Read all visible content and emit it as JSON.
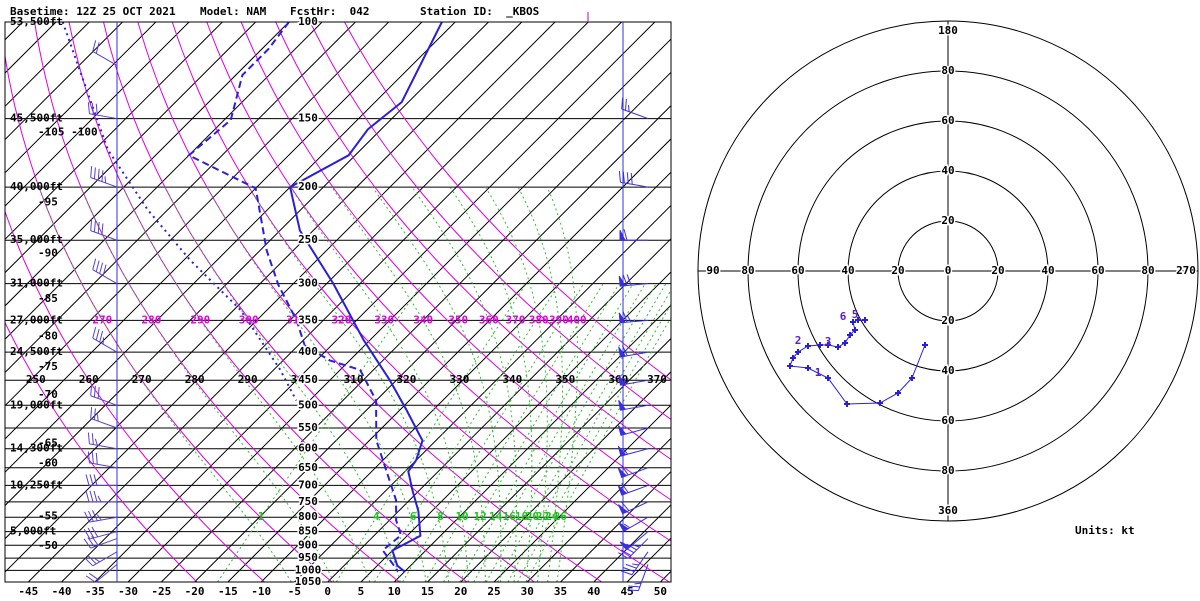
{
  "header": {
    "basetime": "Basetime: 12Z 25 OCT 2021",
    "model": "Model: NAM",
    "forecast_hour": "FcstHr:  042",
    "station": "Station ID:  _KBOS"
  },
  "chart_data": [
    {
      "type": "skewt",
      "log_y": true,
      "xlim": [
        -48.5,
        51.6
      ],
      "xticks": [
        -45,
        -40,
        -35,
        -30,
        -25,
        -20,
        -15,
        -10,
        -5,
        0,
        5,
        10,
        15,
        20,
        25,
        30,
        35,
        40,
        45,
        50
      ],
      "ylim": [
        1050,
        100
      ],
      "yticks": [
        100,
        150,
        200,
        250,
        300,
        350,
        400,
        450,
        500,
        550,
        600,
        650,
        700,
        750,
        800,
        850,
        900,
        950,
        1000,
        1050
      ],
      "height_labels": [
        {
          "value": 100,
          "label": "53,500ft"
        },
        {
          "value": 150,
          "label": "45,500ft"
        },
        {
          "value": 200,
          "label": "40,000ft"
        },
        {
          "value": 250,
          "label": "35,000ft"
        },
        {
          "value": 300,
          "label": "31,000ft"
        },
        {
          "value": 350,
          "label": "27,000ft"
        },
        {
          "value": 400,
          "label": "24,500ft"
        },
        {
          "value": 500,
          "label": "19,000ft"
        },
        {
          "value": 600,
          "label": "14,300ft"
        },
        {
          "value": 700,
          "label": "10,250ft"
        },
        {
          "value": 850,
          "label": "5,000ft"
        }
      ],
      "left_labels": [
        {
          "value": 155,
          "label": "-105 -100"
        },
        {
          "value": 208,
          "label": "-95"
        },
        {
          "value": 258,
          "label": "-90"
        },
        {
          "value": 312,
          "label": "-85"
        },
        {
          "value": 365,
          "label": "-80"
        },
        {
          "value": 415,
          "label": "-75"
        },
        {
          "value": 467,
          "label": "-70"
        },
        {
          "value": 572,
          "label": "-65"
        },
        {
          "value": 622,
          "label": "-60"
        },
        {
          "value": 777,
          "label": "-55"
        },
        {
          "value": 881,
          "label": "-50"
        }
      ],
      "theta_labels": [
        250,
        260,
        270,
        280,
        290,
        300,
        310,
        320,
        330,
        340,
        350,
        360,
        370
      ],
      "theta_e_labels": [
        270,
        280,
        290,
        300,
        310,
        320,
        330,
        340,
        350,
        360,
        370,
        380,
        390,
        400
      ],
      "mixing_ratio_labels": [
        1,
        4,
        6,
        8,
        10,
        12,
        14,
        16,
        18,
        20,
        22,
        24,
        26
      ],
      "series": [
        {
          "style": "solid",
          "color": "#2a1fd8",
          "pressure": [
            100,
            140,
            157,
            175,
            200,
            240,
            300,
            380,
            450,
            510,
            580,
            630,
            660,
            715,
            780,
            865,
            920,
            980,
            1005
          ],
          "values": [
            -67,
            -61,
            -62,
            -61,
            -65,
            -57,
            -44,
            -31,
            -21,
            -14,
            -7,
            -5,
            -4.5,
            -1,
            3,
            7,
            5,
            8,
            10
          ]
        },
        {
          "style": "dashed",
          "color": "#2a1fd8",
          "pressure": [
            100,
            112,
            125,
            151,
            175,
            201,
            261,
            302,
            350,
            389,
            414,
            431,
            490,
            579,
            685,
            745,
            810,
            863,
            919,
            980,
            1005
          ],
          "values": [
            -90,
            -89,
            -89,
            -84,
            -85,
            -70,
            -59,
            -52,
            -44,
            -39,
            -33,
            -27,
            -20,
            -14,
            -6,
            -2,
            1,
            4,
            3.5,
            7.5,
            9
          ]
        },
        {
          "style": "dotted",
          "color": "#2a1fd8",
          "pressure": [
            100,
            171,
            220,
            272,
            335,
            431,
            490
          ],
          "values": [
            -124,
            -98,
            -83,
            -69,
            -54,
            -39,
            -32
          ]
        }
      ],
      "winds": [
        {
          "color": "#5a3fd0",
          "pressure": [
            975,
            925,
            875,
            850,
            800,
            750,
            700,
            650,
            600,
            550,
            500,
            400,
            300,
            250,
            200,
            150,
            120
          ],
          "speed": [
            20,
            25,
            30,
            30,
            35,
            35,
            30,
            30,
            25,
            25,
            30,
            35,
            40,
            40,
            45,
            30,
            20
          ],
          "direction": [
            230,
            240,
            250,
            255,
            260,
            270,
            270,
            280,
            280,
            290,
            290,
            300,
            300,
            290,
            290,
            280,
            300
          ]
        },
        {
          "color": "#3a2fe0",
          "pressure": [
            975,
            925,
            875,
            850,
            800,
            750,
            700,
            650,
            600,
            550,
            500,
            450,
            400,
            350,
            300,
            250,
            200,
            150
          ],
          "speed": [
            25,
            35,
            45,
            50,
            55,
            60,
            60,
            60,
            55,
            50,
            50,
            55,
            60,
            65,
            70,
            60,
            40,
            25
          ],
          "direction": [
            200,
            215,
            225,
            230,
            240,
            245,
            250,
            250,
            255,
            255,
            260,
            260,
            260,
            265,
            265,
            270,
            280,
            290
          ]
        }
      ]
    },
    {
      "type": "hodograph",
      "rlim": [
        0,
        100
      ],
      "rticks": [
        0,
        20,
        40,
        60,
        80
      ],
      "directions": {
        "top": "180",
        "bottom": "360",
        "left": "90",
        "right": "270"
      },
      "color": "#2a1fd8",
      "u": [
        -9.2,
        -14.4,
        -20,
        -27.2,
        -40.4,
        -48,
        -56,
        -63.2,
        -62,
        -60,
        -56,
        -51.2,
        -48,
        -44,
        -41.2,
        -39.2,
        -37.2,
        -38,
        -36,
        -33.2
      ],
      "v": [
        -29.6,
        -42.8,
        -48.8,
        -52.8,
        -53.2,
        -42.8,
        -38.8,
        -38,
        -34.8,
        -32.4,
        -30,
        -29.6,
        -29.6,
        -30.4,
        -28.8,
        -25.6,
        -23.6,
        -20.4,
        -19.6,
        -19.6
      ],
      "point_labels": [
        null,
        null,
        null,
        null,
        null,
        "1",
        null,
        null,
        null,
        null,
        "2",
        null,
        null,
        "3",
        null,
        null,
        null,
        "6",
        null,
        "5"
      ],
      "units": "Units: kt"
    }
  ]
}
